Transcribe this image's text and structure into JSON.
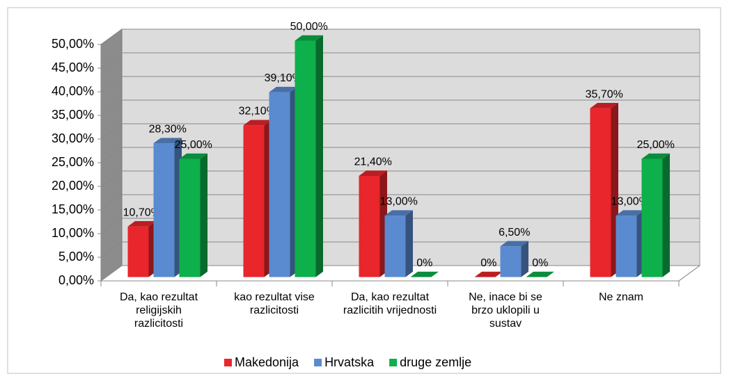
{
  "chart_data": {
    "type": "bar3d",
    "categories": [
      "Da, kao rezultat religijskih razlicitosti",
      "kao rezultat vise razlicitosti",
      "Da, kao rezultat razlicitih vrijednosti",
      "Ne, inace bi se brzo uklopili u sustav",
      "Ne znam"
    ],
    "series": [
      {
        "name": "Makedonija",
        "color": "#e8262b",
        "values": [
          10.7,
          32.1,
          21.4,
          0,
          35.7
        ],
        "value_labels": [
          "10,70%",
          "32,10%",
          "21,40%",
          "0%",
          "35,70%"
        ]
      },
      {
        "name": "Hrvatska",
        "color": "#5a8bd0",
        "values": [
          28.3,
          39.1,
          13.0,
          6.5,
          13.0
        ],
        "value_labels": [
          "28,30%",
          "39,10%",
          "13,00%",
          "6,50%",
          "13,00%"
        ]
      },
      {
        "name": "druge zemlje",
        "color": "#0db04b",
        "values": [
          25.0,
          50.0,
          0,
          0,
          25.0
        ],
        "value_labels": [
          "25,00%",
          "50,00%",
          "0%",
          "0%",
          "25,00%"
        ]
      }
    ],
    "ylim": [
      0,
      50
    ],
    "yticks": [
      {
        "value": 0,
        "label": "0,00%"
      },
      {
        "value": 5,
        "label": "5,00%"
      },
      {
        "value": 10,
        "label": "10,00%"
      },
      {
        "value": 15,
        "label": "15,00%"
      },
      {
        "value": 20,
        "label": "20,00%"
      },
      {
        "value": 25,
        "label": "25,00%"
      },
      {
        "value": 30,
        "label": "30,00%"
      },
      {
        "value": 35,
        "label": "35,00%"
      },
      {
        "value": 40,
        "label": "40,00%"
      },
      {
        "value": 45,
        "label": "45,00%"
      },
      {
        "value": 50,
        "label": "50,00%"
      }
    ],
    "grid": true,
    "legend": "bottom"
  }
}
